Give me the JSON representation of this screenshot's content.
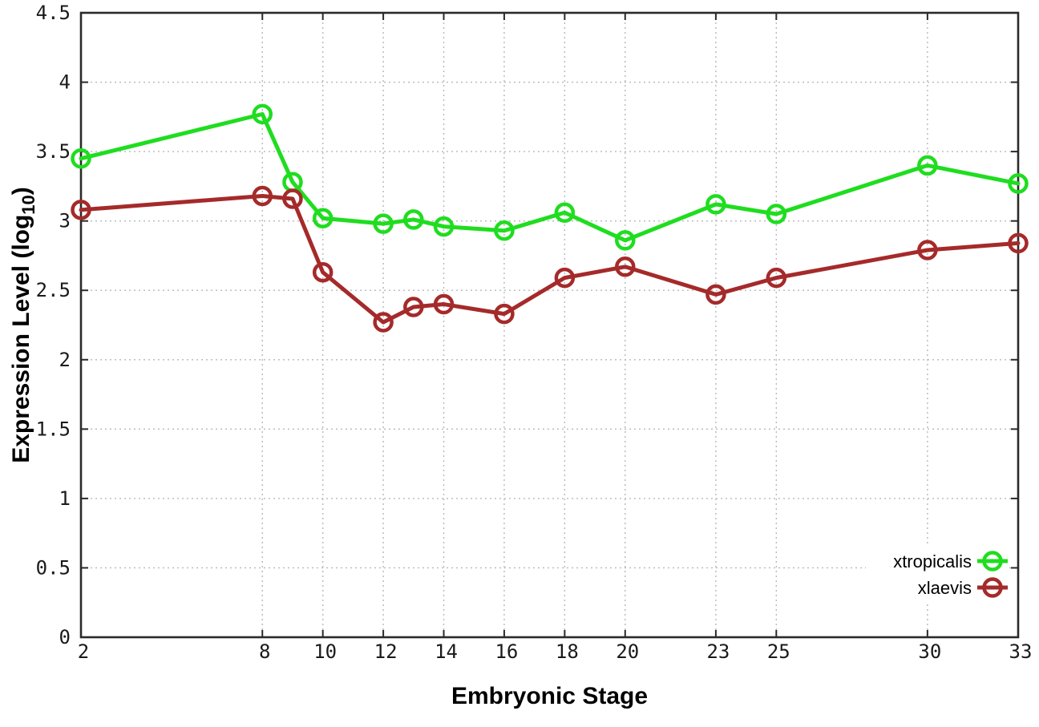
{
  "chart_data": {
    "type": "line",
    "title": "",
    "xlabel": "Embryonic Stage",
    "ylabel": "Expression Level (log10)",
    "ylabel_subscript": "10",
    "xlim": [
      2,
      33
    ],
    "ylim": [
      0,
      4.5
    ],
    "xticks": [
      2,
      8,
      10,
      12,
      14,
      16,
      18,
      20,
      23,
      25,
      30,
      33
    ],
    "yticks": [
      0,
      0.5,
      1,
      1.5,
      2,
      2.5,
      3,
      3.5,
      4,
      4.5
    ],
    "grid": true,
    "legend_position": "bottom-right-inside",
    "x": [
      2,
      8,
      9,
      10,
      12,
      13,
      14,
      16,
      18,
      20,
      23,
      25,
      30,
      33
    ],
    "series": [
      {
        "name": "xtropicalis",
        "color": "#1fdd1f",
        "values": [
          3.45,
          3.77,
          3.28,
          3.02,
          2.98,
          3.01,
          2.96,
          2.93,
          3.06,
          2.86,
          3.12,
          3.05,
          3.4,
          3.27
        ]
      },
      {
        "name": "xlaevis",
        "color": "#a52a2a",
        "values": [
          3.08,
          3.18,
          3.16,
          2.63,
          2.27,
          2.38,
          2.4,
          2.33,
          2.59,
          2.67,
          2.47,
          2.59,
          2.79,
          2.84
        ]
      }
    ],
    "colors": {
      "border": "#2a2a2a",
      "grid": "#b8b8b8",
      "tick_text": "#1a1a1a",
      "background": "#ffffff"
    }
  }
}
